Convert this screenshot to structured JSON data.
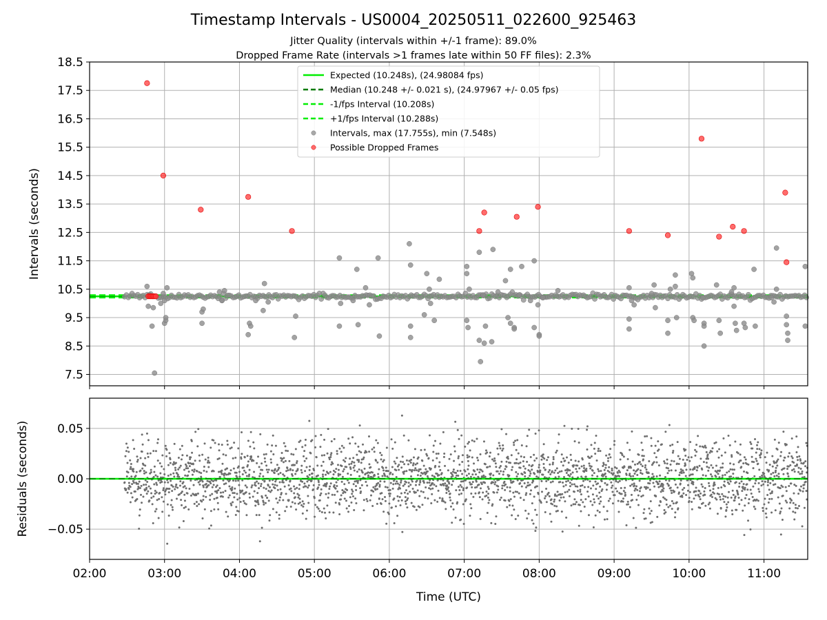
{
  "title": "Timestamp Intervals - US0004_20250511_022600_925463",
  "subtitle_1": "Jitter Quality (intervals within +/-1 frame): 89.0%",
  "subtitle_2": "Dropped Frame Rate (intervals >1 frames late within 50 FF files): 2.3%",
  "colors": {
    "expected": "#00ee00",
    "median": "#007a00",
    "fps_bounds": "#00ee00",
    "intervals": "#8c8c8c",
    "dropped": "#ff3b3b",
    "dropped_edge": "#e00000",
    "residuals": "#6e6e6e",
    "grid": "#b0b0b0"
  },
  "chart_data": [
    {
      "type": "scatter",
      "name": "intervals-panel",
      "xlabel": "",
      "ylabel": "Intervals (seconds)",
      "xlim": [
        "02:00",
        "11:35"
      ],
      "ylim": [
        7.1,
        18.5
      ],
      "x_ticks": [
        "02:00",
        "03:00",
        "04:00",
        "05:00",
        "06:00",
        "07:00",
        "08:00",
        "09:00",
        "10:00",
        "11:00"
      ],
      "y_ticks": [
        "7.5",
        "8.5",
        "9.5",
        "10.5",
        "11.5",
        "12.5",
        "13.5",
        "14.5",
        "15.5",
        "16.5",
        "17.5",
        "18.5"
      ],
      "grid": true,
      "legend_position": "top-center",
      "reference_lines": [
        {
          "label": "Expected (10.248s), (24.98084 fps)",
          "y": 10.248,
          "style": "solid",
          "color_key": "expected"
        },
        {
          "label": "Median (10.248 +/- 0.021 s), (24.97967 +/- 0.05 fps)",
          "y": 10.248,
          "style": "dashed",
          "color_key": "median"
        },
        {
          "label": "-1/fps Interval (10.208s)",
          "y": 10.208,
          "style": "dashed",
          "color_key": "fps_bounds"
        },
        {
          "label": "+1/fps Interval (10.288s)",
          "y": 10.288,
          "style": "dashed",
          "color_key": "fps_bounds"
        }
      ],
      "series": [
        {
          "name": "Intervals, max (17.755s), min (7.548s)",
          "points": [
            [
              "02:46",
              10.6
            ],
            [
              "02:47",
              9.9
            ],
            [
              "02:48",
              10.3
            ],
            [
              "02:50",
              9.2
            ],
            [
              "02:51",
              9.85
            ],
            [
              "02:52",
              7.548
            ],
            [
              "02:57",
              10.0
            ],
            [
              "02:59",
              10.35
            ],
            [
              "03:00",
              10.1
            ],
            [
              "03:00",
              9.3
            ],
            [
              "03:01",
              9.4
            ],
            [
              "03:01",
              9.5
            ],
            [
              "03:02",
              10.55
            ],
            [
              "03:30",
              9.3
            ],
            [
              "03:30",
              9.7
            ],
            [
              "03:31",
              9.8
            ],
            [
              "03:44",
              10.4
            ],
            [
              "03:46",
              10.1
            ],
            [
              "03:48",
              10.45
            ],
            [
              "04:07",
              8.9
            ],
            [
              "04:08",
              9.3
            ],
            [
              "04:09",
              9.2
            ],
            [
              "04:13",
              10.1
            ],
            [
              "04:19",
              9.75
            ],
            [
              "04:20",
              10.7
            ],
            [
              "04:23",
              10.05
            ],
            [
              "04:44",
              8.8
            ],
            [
              "04:45",
              9.55
            ],
            [
              "05:20",
              11.6
            ],
            [
              "05:20",
              9.2
            ],
            [
              "05:21",
              10.0
            ],
            [
              "05:31",
              10.1
            ],
            [
              "05:34",
              11.2
            ],
            [
              "05:35",
              9.25
            ],
            [
              "05:41",
              10.55
            ],
            [
              "05:44",
              9.95
            ],
            [
              "05:51",
              11.6
            ],
            [
              "05:52",
              8.85
            ],
            [
              "06:16",
              12.1
            ],
            [
              "06:17",
              11.35
            ],
            [
              "06:17",
              9.2
            ],
            [
              "06:17",
              8.8
            ],
            [
              "06:28",
              9.6
            ],
            [
              "06:30",
              11.05
            ],
            [
              "06:32",
              10.5
            ],
            [
              "06:33",
              10.0
            ],
            [
              "06:36",
              9.4
            ],
            [
              "06:40",
              10.85
            ],
            [
              "07:02",
              11.3
            ],
            [
              "07:02",
              11.05
            ],
            [
              "07:02",
              9.4
            ],
            [
              "07:03",
              9.15
            ],
            [
              "07:04",
              10.5
            ],
            [
              "07:12",
              11.8
            ],
            [
              "07:12",
              8.7
            ],
            [
              "07:13",
              7.95
            ],
            [
              "07:15",
              10.3
            ],
            [
              "07:16",
              8.6
            ],
            [
              "07:17",
              9.2
            ],
            [
              "07:22",
              8.65
            ],
            [
              "07:23",
              11.9
            ],
            [
              "07:27",
              10.4
            ],
            [
              "07:33",
              10.8
            ],
            [
              "07:35",
              9.5
            ],
            [
              "07:37",
              11.2
            ],
            [
              "07:37",
              9.3
            ],
            [
              "07:40",
              9.15
            ],
            [
              "07:40",
              9.1
            ],
            [
              "07:44",
              10.3
            ],
            [
              "07:46",
              11.3
            ],
            [
              "07:53",
              10.1
            ],
            [
              "07:56",
              11.5
            ],
            [
              "07:56",
              9.15
            ],
            [
              "07:59",
              9.95
            ],
            [
              "08:00",
              8.9
            ],
            [
              "08:00",
              8.85
            ],
            [
              "08:03",
              10.2
            ],
            [
              "08:15",
              10.45
            ],
            [
              "09:12",
              10.55
            ],
            [
              "09:12",
              9.45
            ],
            [
              "09:12",
              9.1
            ],
            [
              "09:14",
              10.1
            ],
            [
              "09:16",
              9.95
            ],
            [
              "09:30",
              10.35
            ],
            [
              "09:32",
              10.65
            ],
            [
              "09:33",
              9.85
            ],
            [
              "09:43",
              9.4
            ],
            [
              "09:43",
              8.95
            ],
            [
              "09:45",
              10.5
            ],
            [
              "09:49",
              11.0
            ],
            [
              "09:49",
              10.6
            ],
            [
              "09:50",
              9.5
            ],
            [
              "10:02",
              11.05
            ],
            [
              "10:03",
              10.9
            ],
            [
              "10:03",
              9.5
            ],
            [
              "10:04",
              9.4
            ],
            [
              "10:11",
              10.2
            ],
            [
              "10:12",
              9.3
            ],
            [
              "10:12",
              9.2
            ],
            [
              "10:12",
              8.5
            ],
            [
              "10:22",
              10.65
            ],
            [
              "10:24",
              9.4
            ],
            [
              "10:25",
              8.95
            ],
            [
              "10:34",
              10.4
            ],
            [
              "10:36",
              10.55
            ],
            [
              "10:36",
              9.9
            ],
            [
              "10:37",
              9.3
            ],
            [
              "10:38",
              9.05
            ],
            [
              "10:44",
              9.3
            ],
            [
              "10:45",
              9.15
            ],
            [
              "10:52",
              11.2
            ],
            [
              "10:53",
              9.2
            ],
            [
              "11:06",
              10.2
            ],
            [
              "11:08",
              10.05
            ],
            [
              "11:10",
              11.95
            ],
            [
              "11:10",
              10.5
            ],
            [
              "11:18",
              9.55
            ],
            [
              "11:18",
              9.25
            ],
            [
              "11:19",
              8.95
            ],
            [
              "11:19",
              8.7
            ],
            [
              "11:33",
              11.3
            ],
            [
              "11:33",
              9.2
            ]
          ]
        },
        {
          "name": "Possible Dropped Frames",
          "points": [
            [
              "02:46",
              17.755
            ],
            [
              "02:59",
              14.5
            ],
            [
              "03:29",
              13.3
            ],
            [
              "04:07",
              13.75
            ],
            [
              "04:42",
              12.55
            ],
            [
              "07:12",
              12.55
            ],
            [
              "07:16",
              13.2
            ],
            [
              "07:42",
              13.05
            ],
            [
              "07:59",
              13.4
            ],
            [
              "09:12",
              12.55
            ],
            [
              "09:43",
              12.4
            ],
            [
              "10:10",
              15.8
            ],
            [
              "10:24",
              12.35
            ],
            [
              "10:35",
              12.7
            ],
            [
              "10:44",
              12.55
            ],
            [
              "11:17",
              13.9
            ],
            [
              "11:18",
              11.45
            ],
            [
              "02:47",
              10.25
            ],
            [
              "02:48",
              10.25
            ],
            [
              "02:49",
              10.25
            ],
            [
              "02:50",
              10.25
            ],
            [
              "02:51",
              10.25
            ],
            [
              "02:52",
              10.25
            ],
            [
              "02:53",
              10.25
            ]
          ]
        }
      ]
    },
    {
      "type": "scatter",
      "name": "residuals-panel",
      "xlabel": "Time (UTC)",
      "ylabel": "Residuals (seconds)",
      "xlim": [
        "02:00",
        "11:35"
      ],
      "ylim": [
        -0.08,
        0.08
      ],
      "x_ticks": [
        "02:00",
        "03:00",
        "04:00",
        "05:00",
        "06:00",
        "07:00",
        "08:00",
        "09:00",
        "10:00",
        "11:00"
      ],
      "y_ticks": [
        "0.05",
        "0.00",
        "−0.05"
      ],
      "grid": true,
      "reference_line": 0.0,
      "series": [
        {
          "name": "",
          "x_range": [
            "02:28",
            "11:35"
          ],
          "spread": 0.019,
          "count": 2700
        }
      ]
    }
  ]
}
